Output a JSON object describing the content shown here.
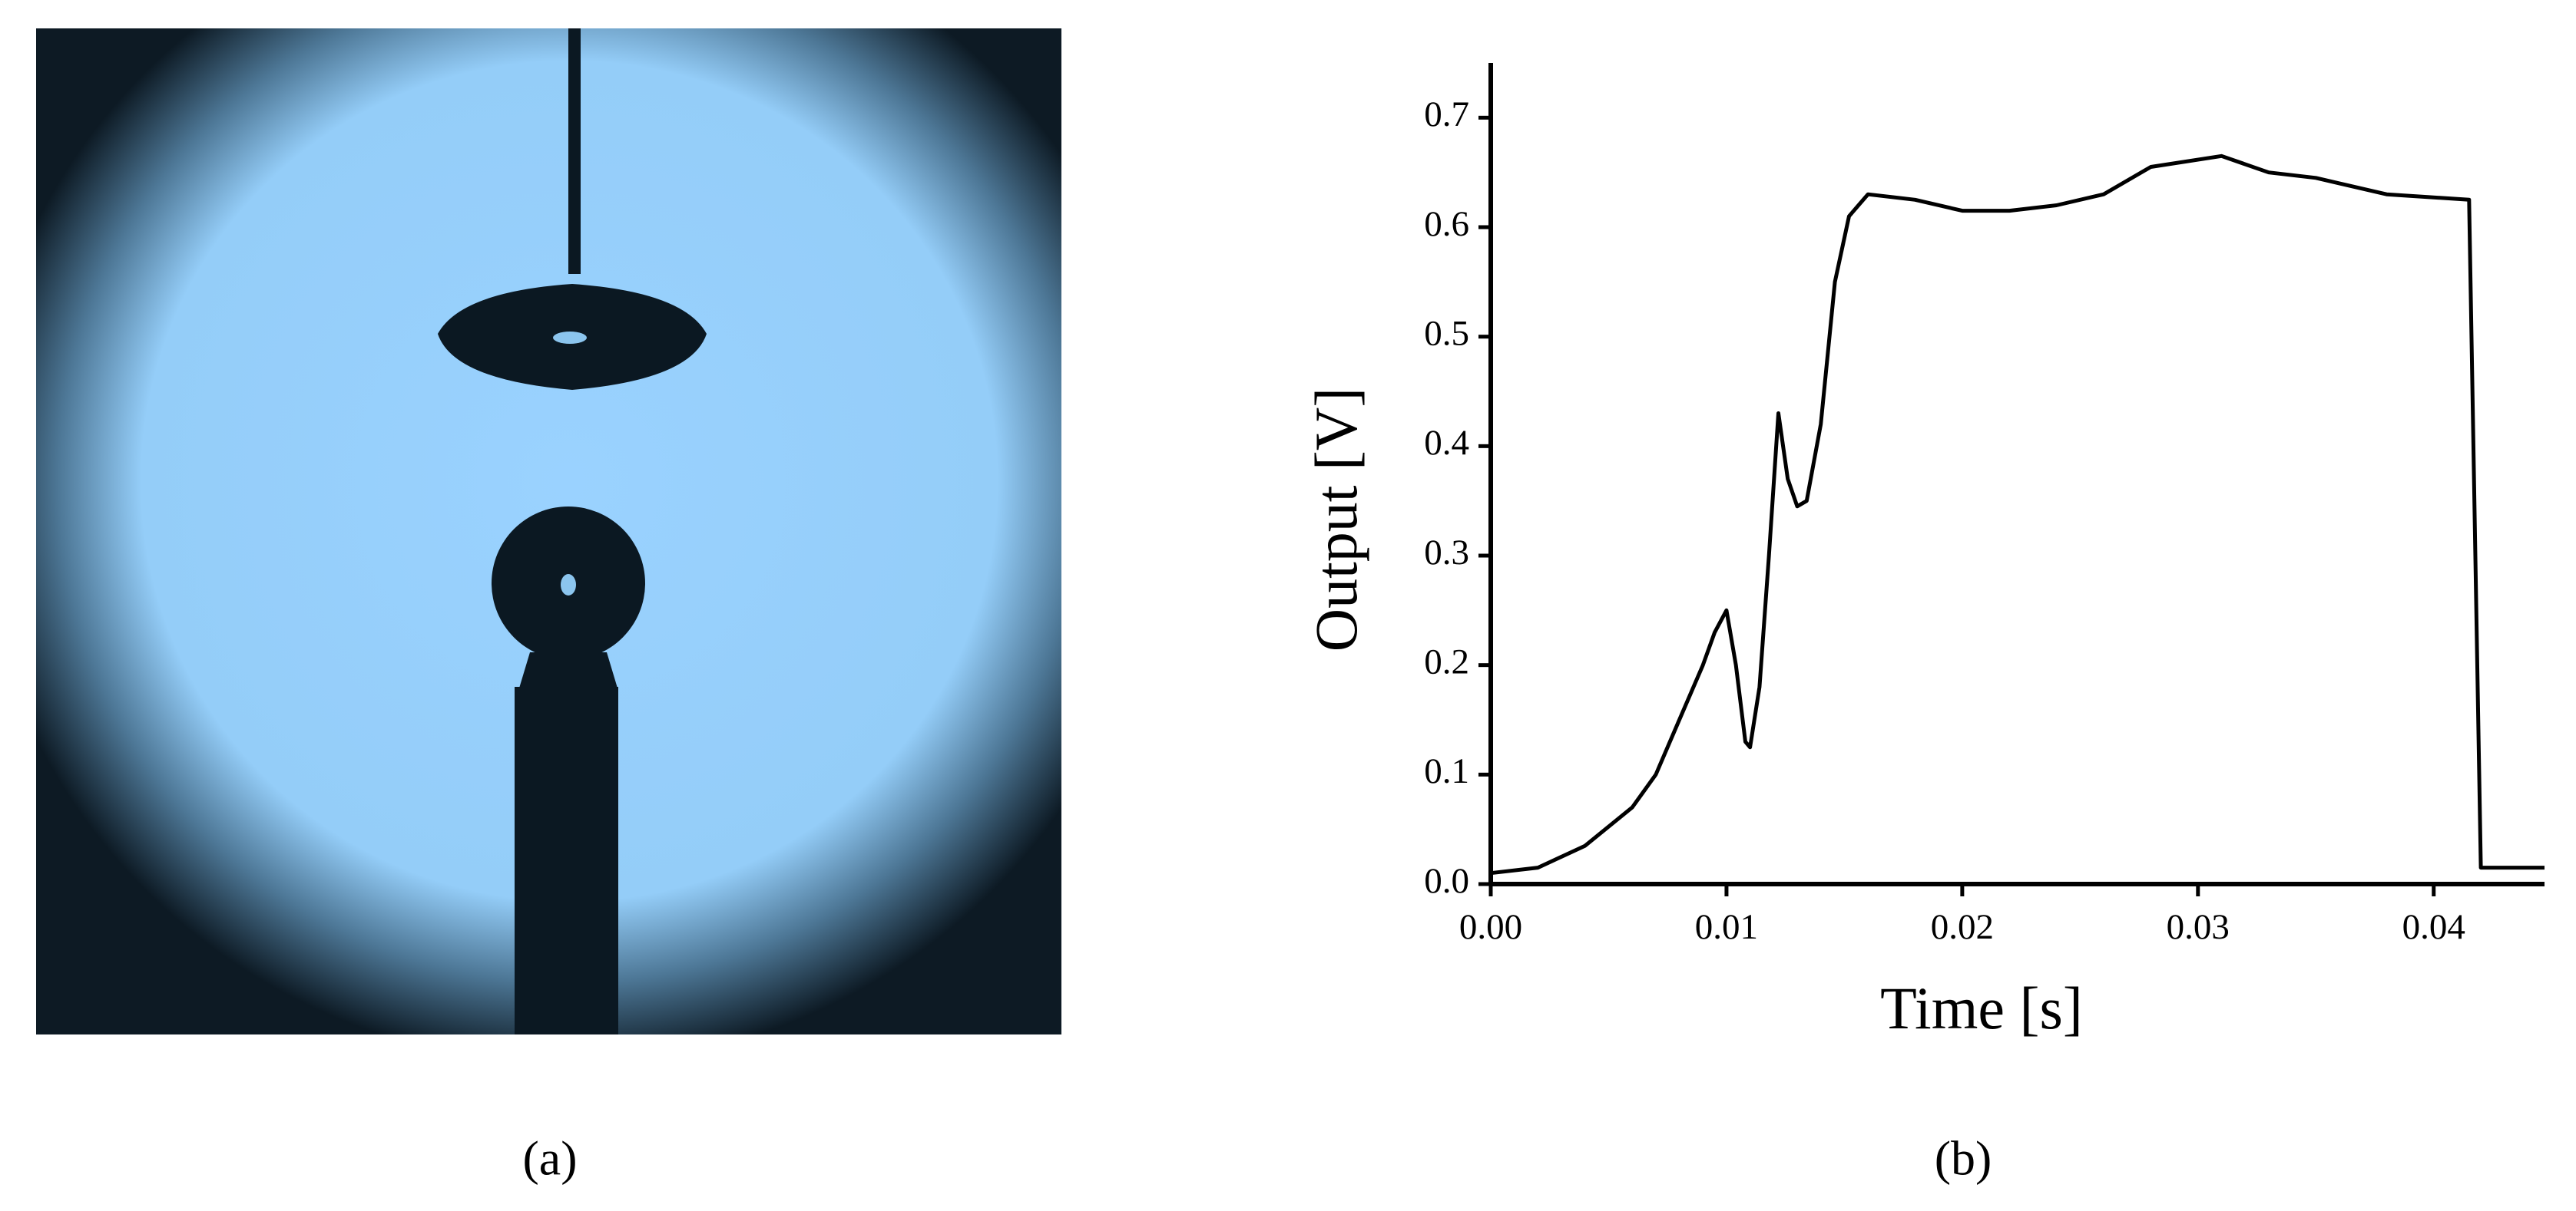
{
  "panels": [
    "(a)",
    "(b)"
  ],
  "chart_data": {
    "type": "line",
    "x_label": "Time [s]",
    "y_label": "Output [V]",
    "x": [
      0,
      0.002,
      0.004,
      0.006,
      0.007,
      0.008,
      0.009,
      0.0095,
      0.01,
      0.0104,
      0.0108,
      0.011,
      0.0114,
      0.0118,
      0.0122,
      0.0126,
      0.013,
      0.0134,
      0.014,
      0.0146,
      0.0152,
      0.016,
      0.018,
      0.02,
      0.022,
      0.024,
      0.026,
      0.028,
      0.031,
      0.033,
      0.035,
      0.038,
      0.0415,
      0.042,
      0.0447
    ],
    "series": [
      {
        "color": "#000000",
        "values": [
          0.01,
          0.015,
          0.035,
          0.07,
          0.1,
          0.15,
          0.2,
          0.23,
          0.25,
          0.2,
          0.13,
          0.125,
          0.18,
          0.3,
          0.43,
          0.37,
          0.345,
          0.35,
          0.42,
          0.55,
          0.61,
          0.63,
          0.625,
          0.615,
          0.615,
          0.62,
          0.63,
          0.655,
          0.665,
          0.65,
          0.645,
          0.63,
          0.625,
          0.015,
          0.015
        ]
      }
    ],
    "xlim": [
      0,
      0.0447
    ],
    "ylim": [
      0,
      0.75
    ],
    "xticks": [
      {
        "value": 0,
        "label": "0.00"
      },
      0.01,
      0.02,
      0.03,
      0.04
    ],
    "yticks": [
      {
        "value": 0,
        "label": "0.0"
      },
      0.1,
      0.2,
      0.3,
      0.4,
      0.5,
      0.6,
      0.7
    ]
  }
}
